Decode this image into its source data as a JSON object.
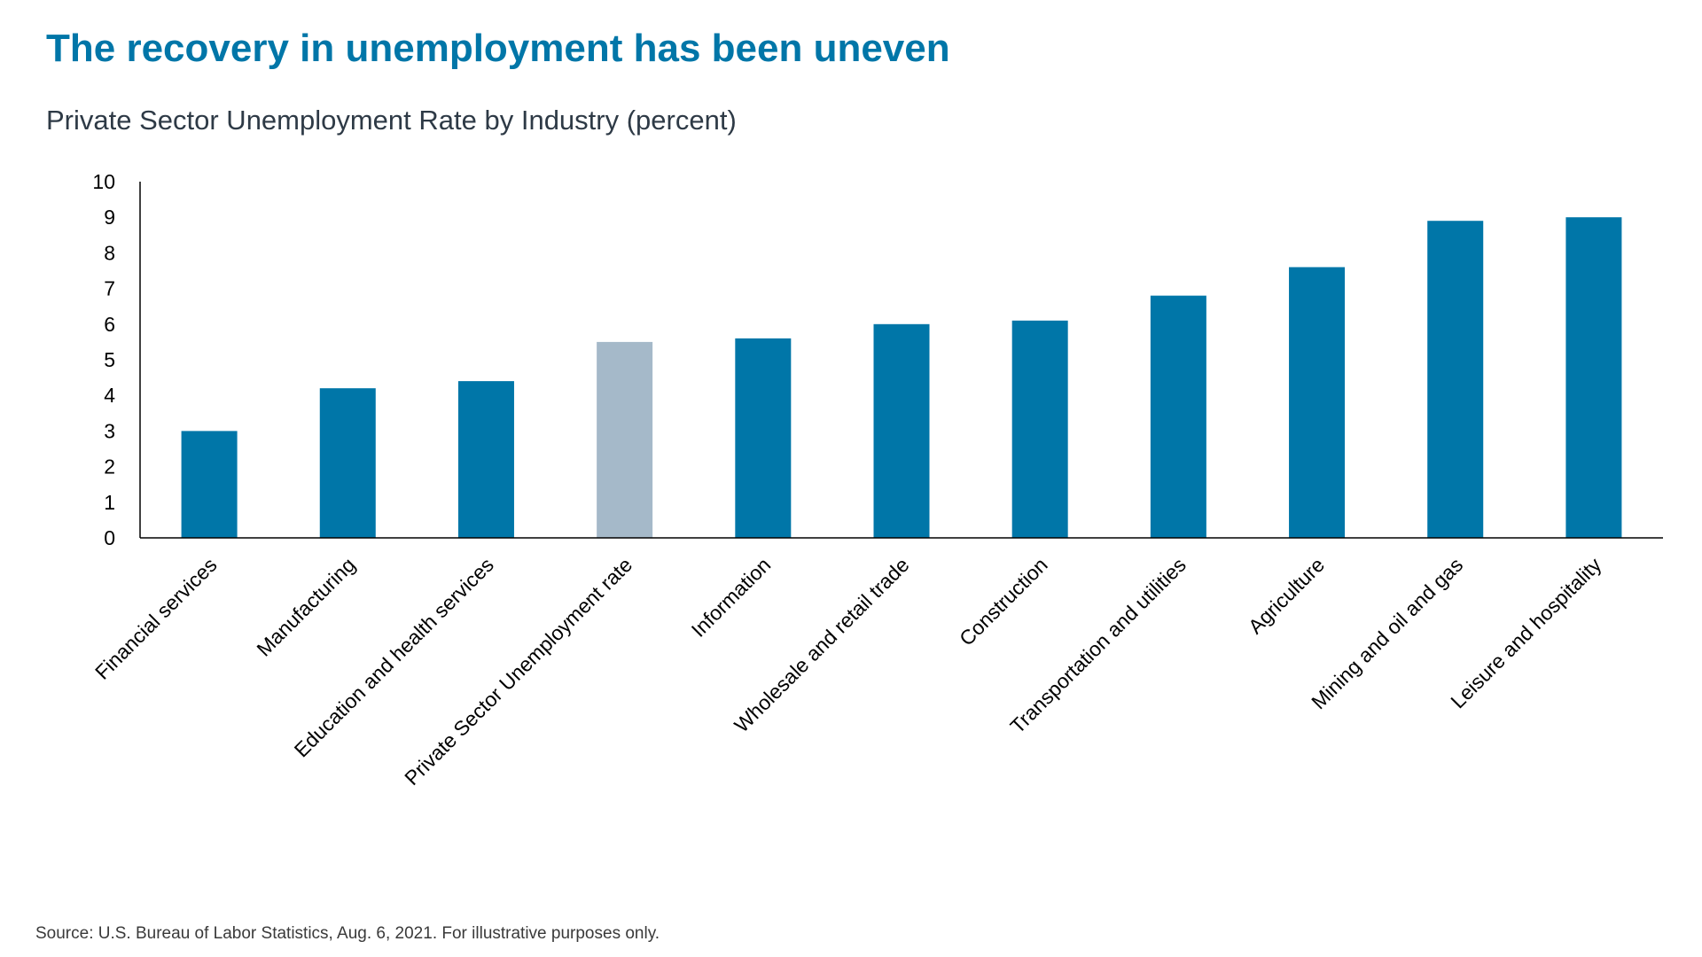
{
  "title": "The recovery in unemployment has been uneven",
  "subtitle": "Private Sector Unemployment Rate by Industry (percent)",
  "source": "Source: U.S. Bureau of Labor Statistics, Aug. 6, 2021. For illustrative purposes only.",
  "colors": {
    "title": "#0076a8",
    "bar": "#0076a8",
    "highlight_bar": "#a5b9c9",
    "axis": "#000000"
  },
  "chart_data": {
    "type": "bar",
    "title": "Private Sector Unemployment Rate by Industry (percent)",
    "xlabel": "",
    "ylabel": "",
    "ylim": [
      0,
      10
    ],
    "yticks": [
      0,
      1,
      2,
      3,
      4,
      5,
      6,
      7,
      8,
      9,
      10
    ],
    "grid": false,
    "legend": "none",
    "categories": [
      "Financial services",
      "Manufacturing",
      "Education and health services",
      "Private Sector Unemployment rate",
      "Information",
      "Wholesale and retail trade",
      "Construction",
      "Transportation and utilities",
      "Agriculture",
      "Mining and oil and gas",
      "Leisure and hospitality"
    ],
    "values": [
      3.0,
      4.2,
      4.4,
      5.5,
      5.6,
      6.0,
      6.1,
      6.8,
      7.6,
      8.9,
      9.0
    ],
    "highlight": [
      false,
      false,
      false,
      true,
      false,
      false,
      false,
      false,
      false,
      false,
      false
    ]
  }
}
